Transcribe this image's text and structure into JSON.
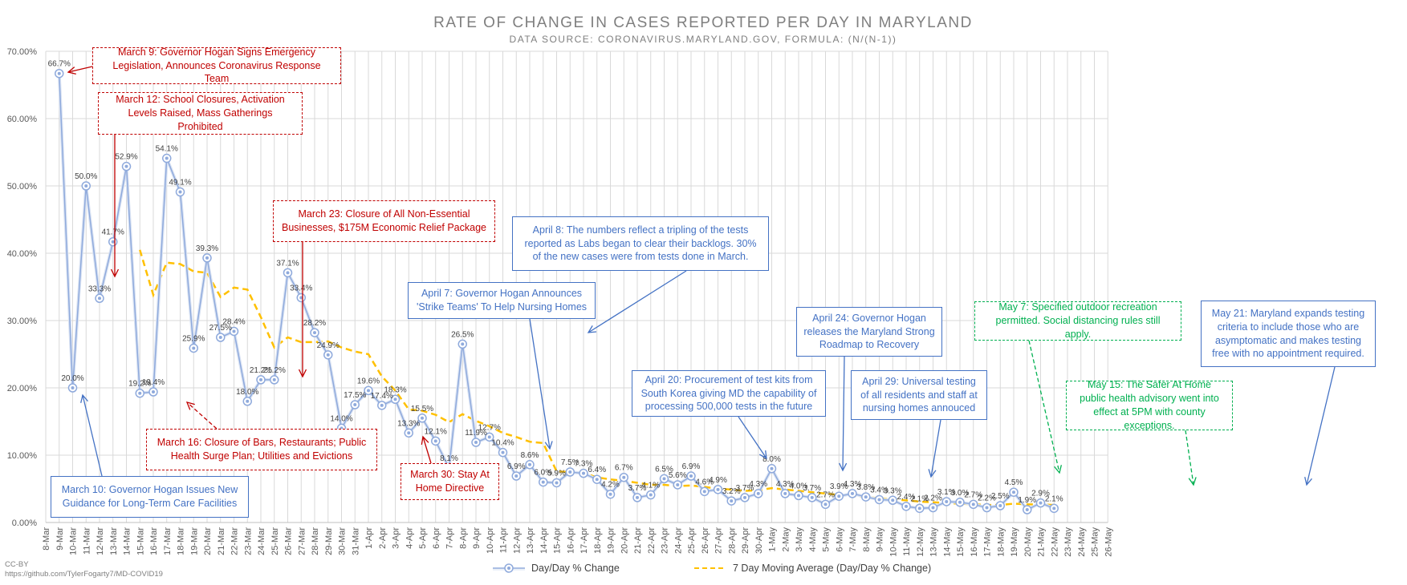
{
  "chart_data": {
    "type": "line",
    "title": "RATE OF CHANGE IN CASES REPORTED PER DAY IN MARYLAND",
    "subtitle": "DATA SOURCE: CORONAVIRUS.MARYLAND.GOV, FORMULA: (N/(N-1))",
    "x": [
      "8-Mar",
      "9-Mar",
      "10-Mar",
      "11-Mar",
      "12-Mar",
      "13-Mar",
      "14-Mar",
      "15-Mar",
      "16-Mar",
      "17-Mar",
      "18-Mar",
      "19-Mar",
      "20-Mar",
      "21-Mar",
      "22-Mar",
      "23-Mar",
      "24-Mar",
      "25-Mar",
      "26-Mar",
      "27-Mar",
      "28-Mar",
      "29-Mar",
      "30-Mar",
      "31-Mar",
      "1-Apr",
      "2-Apr",
      "3-Apr",
      "4-Apr",
      "5-Apr",
      "6-Apr",
      "7-Apr",
      "8-Apr",
      "9-Apr",
      "10-Apr",
      "11-Apr",
      "12-Apr",
      "13-Apr",
      "14-Apr",
      "15-Apr",
      "16-Apr",
      "17-Apr",
      "18-Apr",
      "19-Apr",
      "20-Apr",
      "21-Apr",
      "22-Apr",
      "23-Apr",
      "24-Apr",
      "25-Apr",
      "26-Apr",
      "27-Apr",
      "28-Apr",
      "29-Apr",
      "30-Apr",
      "1-May",
      "2-May",
      "3-May",
      "4-May",
      "5-May",
      "6-May",
      "7-May",
      "8-May",
      "9-May",
      "10-May",
      "11-May",
      "12-May",
      "13-May",
      "14-May",
      "15-May",
      "16-May",
      "17-May",
      "18-May",
      "19-May",
      "20-May",
      "21-May",
      "22-May",
      "23-May",
      "24-May",
      "25-May",
      "26-May"
    ],
    "ylim": [
      0,
      70
    ],
    "yticks": [
      "0.00%",
      "10.00%",
      "20.00%",
      "30.00%",
      "40.00%",
      "50.00%",
      "60.00%",
      "70.00%"
    ],
    "grid": true,
    "legend_position": "bottom",
    "series": [
      {
        "name": "Day/Day % Change",
        "color": "#8faadc",
        "values": [
          null,
          66.7,
          20.0,
          50.0,
          33.3,
          41.7,
          52.9,
          19.2,
          19.4,
          54.1,
          49.1,
          25.9,
          39.3,
          27.5,
          28.4,
          18.0,
          21.2,
          21.2,
          37.1,
          33.4,
          28.2,
          24.9,
          14.0,
          17.5,
          19.6,
          17.4,
          18.3,
          13.3,
          15.5,
          12.1,
          8.1,
          26.5,
          11.9,
          12.7,
          10.4,
          6.9,
          8.6,
          6.0,
          5.9,
          7.5,
          7.3,
          6.4,
          4.2,
          6.7,
          3.7,
          4.1,
          6.5,
          5.6,
          6.9,
          4.6,
          4.9,
          3.2,
          3.7,
          4.3,
          8.0,
          4.3,
          4.0,
          3.7,
          2.7,
          3.9,
          4.3,
          3.8,
          3.4,
          3.3,
          2.4,
          2.1,
          2.2,
          3.1,
          3.0,
          2.7,
          2.2,
          2.5,
          4.5,
          1.9,
          2.9,
          2.1,
          null,
          null,
          null,
          null
        ],
        "labels": [
          null,
          "66.7%",
          "20.0%",
          "50.0%",
          "33.3%",
          "41.7%",
          "52.9%",
          "19.2%",
          "19.4%",
          "54.1%",
          "49.1%",
          "25.9%",
          "39.3%",
          "27.5%",
          "28.4%",
          "18.0%",
          "21.2%",
          "21.2%",
          "37.1%",
          "33.4%",
          "28.2%",
          "24.9%",
          "14.0%",
          "17.5%",
          "19.6%",
          "17.4%",
          "18.3%",
          "13.3%",
          "15.5%",
          "12.1%",
          "8.1%",
          "26.5%",
          "11.9%",
          "12.7%",
          "10.4%",
          "6.9%",
          "8.6%",
          "6.0%",
          "5.9%",
          "7.5%",
          "7.3%",
          "6.4%",
          "4.2%",
          "6.7%",
          "3.7%",
          "4.1%",
          "6.5%",
          "5.6%",
          "6.9%",
          "4.6%",
          "4.9%",
          "3.2%",
          "3.7%",
          "4.3%",
          "8.0%",
          "4.3%",
          "4.0%",
          "3.7%",
          "2.7%",
          "3.9%",
          "4.3%",
          "3.8%",
          "3.4%",
          "3.3%",
          "2.4%",
          "2.1%",
          "2.2%",
          "3.1%",
          "3.0%",
          "2.7%",
          "2.2%",
          "2.5%",
          "4.5%",
          "1.9%",
          "2.9%",
          "2.1%",
          null,
          null,
          null,
          null
        ]
      },
      {
        "name": "7 Day Moving Average (Day/Day % Change)",
        "color": "#ffc000",
        "values": [
          null,
          null,
          null,
          null,
          null,
          null,
          null,
          40.5,
          33.8,
          38.6,
          38.4,
          37.3,
          37.1,
          33.5,
          34.9,
          34.6,
          30.5,
          26.0,
          27.5,
          26.8,
          26.8,
          26.9,
          26.0,
          25.4,
          25.0,
          21.7,
          19.6,
          16.8,
          16.6,
          16.0,
          14.9,
          16.1,
          15.1,
          14.3,
          13.3,
          12.7,
          12.0,
          11.8,
          7.6,
          7.5,
          7.4,
          6.7,
          6.4,
          6.2,
          5.9,
          5.6,
          5.6,
          5.4,
          5.5,
          5.3,
          5.0,
          4.9,
          4.7,
          4.8,
          5.1,
          4.9,
          4.7,
          4.5,
          4.3,
          4.1,
          4.0,
          3.8,
          3.6,
          3.4,
          3.3,
          3.1,
          3.0,
          2.9,
          2.8,
          2.7,
          2.6,
          2.6,
          2.8,
          2.7,
          2.7,
          2.6,
          null,
          null,
          null,
          null
        ]
      }
    ],
    "annotations": [
      {
        "text": "March 9: Governor Hogan Signs Emergency Legislation, Announces Coronavirus Response Team",
        "style": "red"
      },
      {
        "text": "March 12: School Closures, Activation Levels Raised, Mass Gatherings Prohibited",
        "style": "red"
      },
      {
        "text": "March 23: Closure of All Non-Essential Businesses, $175M Economic Relief Package",
        "style": "red"
      },
      {
        "text": "April 8: The numbers reflect a tripling of the tests reported as Labs began to clear their backlogs. 30% of the new cases were from tests done in March.",
        "style": "blue"
      },
      {
        "text": "April 7: Governor Hogan Announces 'Strike Teams' To Help Nursing Homes",
        "style": "blue"
      },
      {
        "text": "April 24: Governor Hogan releases the Maryland Strong Roadmap to Recovery",
        "style": "blue"
      },
      {
        "text": "May 7: Specified outdoor recreation permitted. Social distancing rules still apply.",
        "style": "green"
      },
      {
        "text": "May 21: Maryland expands testing criteria to include those who are asymptomatic and makes testing free with no appointment required.",
        "style": "blue"
      },
      {
        "text": "April 20: Procurement of test kits from South Korea giving MD the capability of processing 500,000 tests in the future",
        "style": "blue"
      },
      {
        "text": "April 29: Universal testing of all residents and staff at nursing homes annouced",
        "style": "blue"
      },
      {
        "text": "May 15: The Safer At Home public health advisory went into effect at 5PM with county exceptions.",
        "style": "green"
      },
      {
        "text": "March 16: Closure of Bars, Restaurants; Public Health Surge Plan; Utilities and Evictions",
        "style": "red"
      },
      {
        "text": "March 30: Stay At Home Directive",
        "style": "red"
      },
      {
        "text": "March 10: Governor Hogan Issues New Guidance for Long-Term Care Facilities",
        "style": "blue"
      }
    ]
  },
  "credit": {
    "license": "CC-BY",
    "url": "https://github.com/TylerFogarty7/MD-COVID19"
  },
  "colors": {
    "red": "#c00000",
    "blue": "#4472c4",
    "green": "#00b050",
    "grid": "#d9d9d9"
  }
}
